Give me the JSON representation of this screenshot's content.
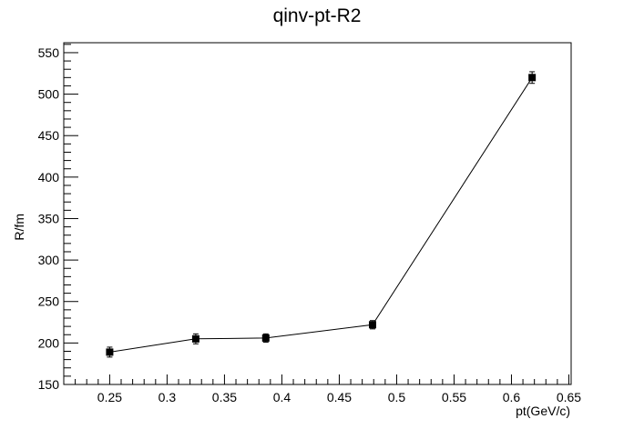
{
  "chart_data": {
    "type": "scatter",
    "title": "qinv-pt-R2",
    "xlabel": "pt(GeV/c)",
    "ylabel": "R/fm",
    "xlim": [
      0.21,
      0.652
    ],
    "ylim": [
      150,
      562
    ],
    "x_ticks": [
      0.25,
      0.3,
      0.35,
      0.4,
      0.45,
      0.5,
      0.55,
      0.6,
      0.65
    ],
    "x_tick_labels": [
      "0.25",
      "0.3",
      "0.35",
      "0.4",
      "0.45",
      "0.5",
      "0.55",
      "0.6",
      "0.65"
    ],
    "y_ticks": [
      150,
      200,
      250,
      300,
      350,
      400,
      450,
      500,
      550
    ],
    "y_tick_labels": [
      "150",
      "200",
      "250",
      "300",
      "350",
      "400",
      "450",
      "500",
      "550"
    ],
    "grid": false,
    "legend": "none",
    "line_connected": true,
    "marker": "square",
    "color": "#000000",
    "series": [
      {
        "x": [
          0.25,
          0.325,
          0.386,
          0.479,
          0.618
        ],
        "y": [
          189,
          205,
          206,
          222,
          520
        ],
        "yerr": [
          6,
          6,
          5,
          5,
          7
        ]
      }
    ]
  }
}
